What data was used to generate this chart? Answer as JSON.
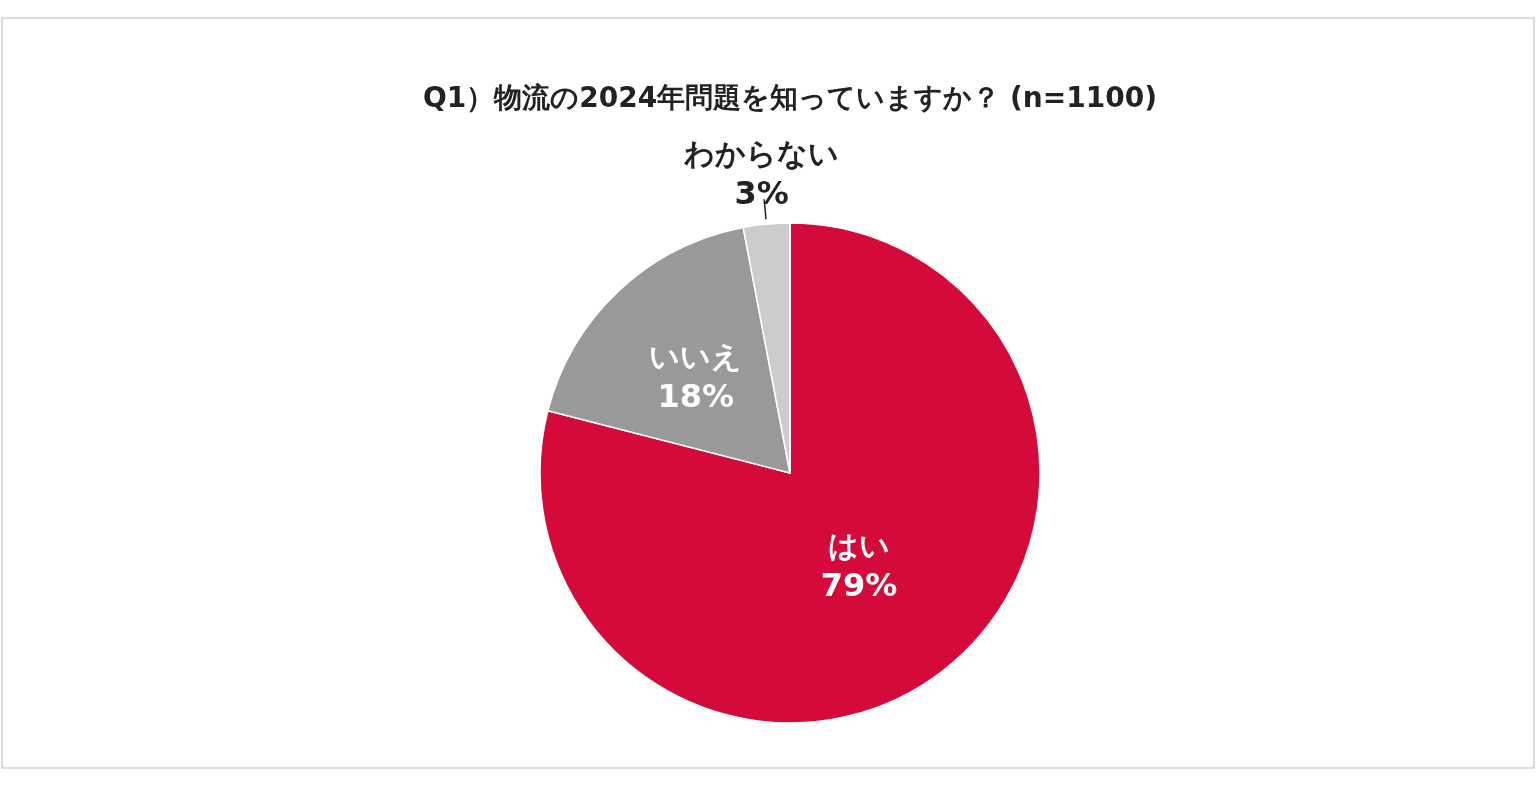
{
  "chart_data": {
    "type": "pie",
    "title": "Q1）物流の2024年問題を知っていますか？ (n=1100)",
    "categories": [
      "はい",
      "いいえ",
      "わからない"
    ],
    "values": [
      79,
      18,
      3
    ],
    "colors": [
      "#d40a3b",
      "#999999",
      "#cccccc"
    ],
    "value_labels": [
      "79%",
      "18%",
      "3%"
    ]
  }
}
